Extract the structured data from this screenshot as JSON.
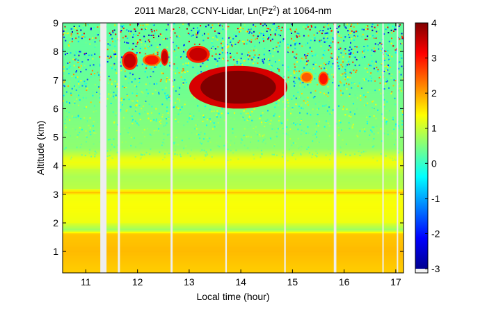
{
  "chart_data": {
    "type": "heatmap",
    "title": "2011 Mar28, CCNY-Lidar, Ln(Pz",
    "title_sup": "2",
    "title_suffix": ") at 1064-nm",
    "xlabel": "Local time (hour)",
    "ylabel": "Altitude (km)",
    "xlim": [
      10.55,
      17.15
    ],
    "ylim": [
      0.25,
      9.0
    ],
    "xticks": [
      11,
      12,
      13,
      14,
      15,
      16,
      17
    ],
    "yticks": [
      1,
      2,
      3,
      4,
      5,
      6,
      7,
      8,
      9
    ],
    "colorbar": {
      "range": [
        -3,
        4
      ],
      "ticks": [
        -3,
        -2,
        -1,
        0,
        1,
        2,
        3,
        4
      ],
      "colormap": "jet"
    },
    "data_gaps_hours": [
      [
        11.28,
        11.4
      ],
      [
        11.62,
        11.66
      ],
      [
        12.64,
        12.68
      ],
      [
        13.7,
        13.73
      ],
      [
        14.84,
        14.87
      ],
      [
        15.8,
        15.85
      ],
      [
        16.74,
        16.76
      ],
      [
        17.02,
        17.04
      ]
    ],
    "features": [
      {
        "name": "cloud",
        "time": [
          11.7,
          12.0
        ],
        "altitude": [
          7.35,
          8.0
        ],
        "value": 3.5
      },
      {
        "name": "cloud",
        "time": [
          12.1,
          12.45
        ],
        "altitude": [
          7.5,
          7.9
        ],
        "value": 3.0
      },
      {
        "name": "cloud",
        "time": [
          12.45,
          12.6
        ],
        "altitude": [
          7.5,
          8.1
        ],
        "value": 3.5
      },
      {
        "name": "cloud",
        "time": [
          12.95,
          13.4
        ],
        "altitude": [
          7.6,
          8.2
        ],
        "value": 3.5
      },
      {
        "name": "cloud",
        "time": [
          13.0,
          14.9
        ],
        "altitude": [
          6.0,
          7.5
        ],
        "value": 4.0
      },
      {
        "name": "cloud",
        "time": [
          15.15,
          15.4
        ],
        "altitude": [
          6.9,
          7.3
        ],
        "value": 2.5
      },
      {
        "name": "cloud",
        "time": [
          15.5,
          15.7
        ],
        "altitude": [
          6.8,
          7.3
        ],
        "value": 3.0
      },
      {
        "name": "aerosol-layer",
        "time": [
          10.55,
          17.15
        ],
        "altitude": [
          3.9,
          4.3
        ],
        "value": 1.2
      },
      {
        "name": "aerosol-layer",
        "time": [
          10.55,
          17.15
        ],
        "altitude": [
          2.0,
          3.0
        ],
        "value": 1.3
      },
      {
        "name": "boundary-layer",
        "time": [
          10.55,
          17.15
        ],
        "altitude": [
          0.25,
          1.6
        ],
        "value": 1.8
      }
    ]
  }
}
